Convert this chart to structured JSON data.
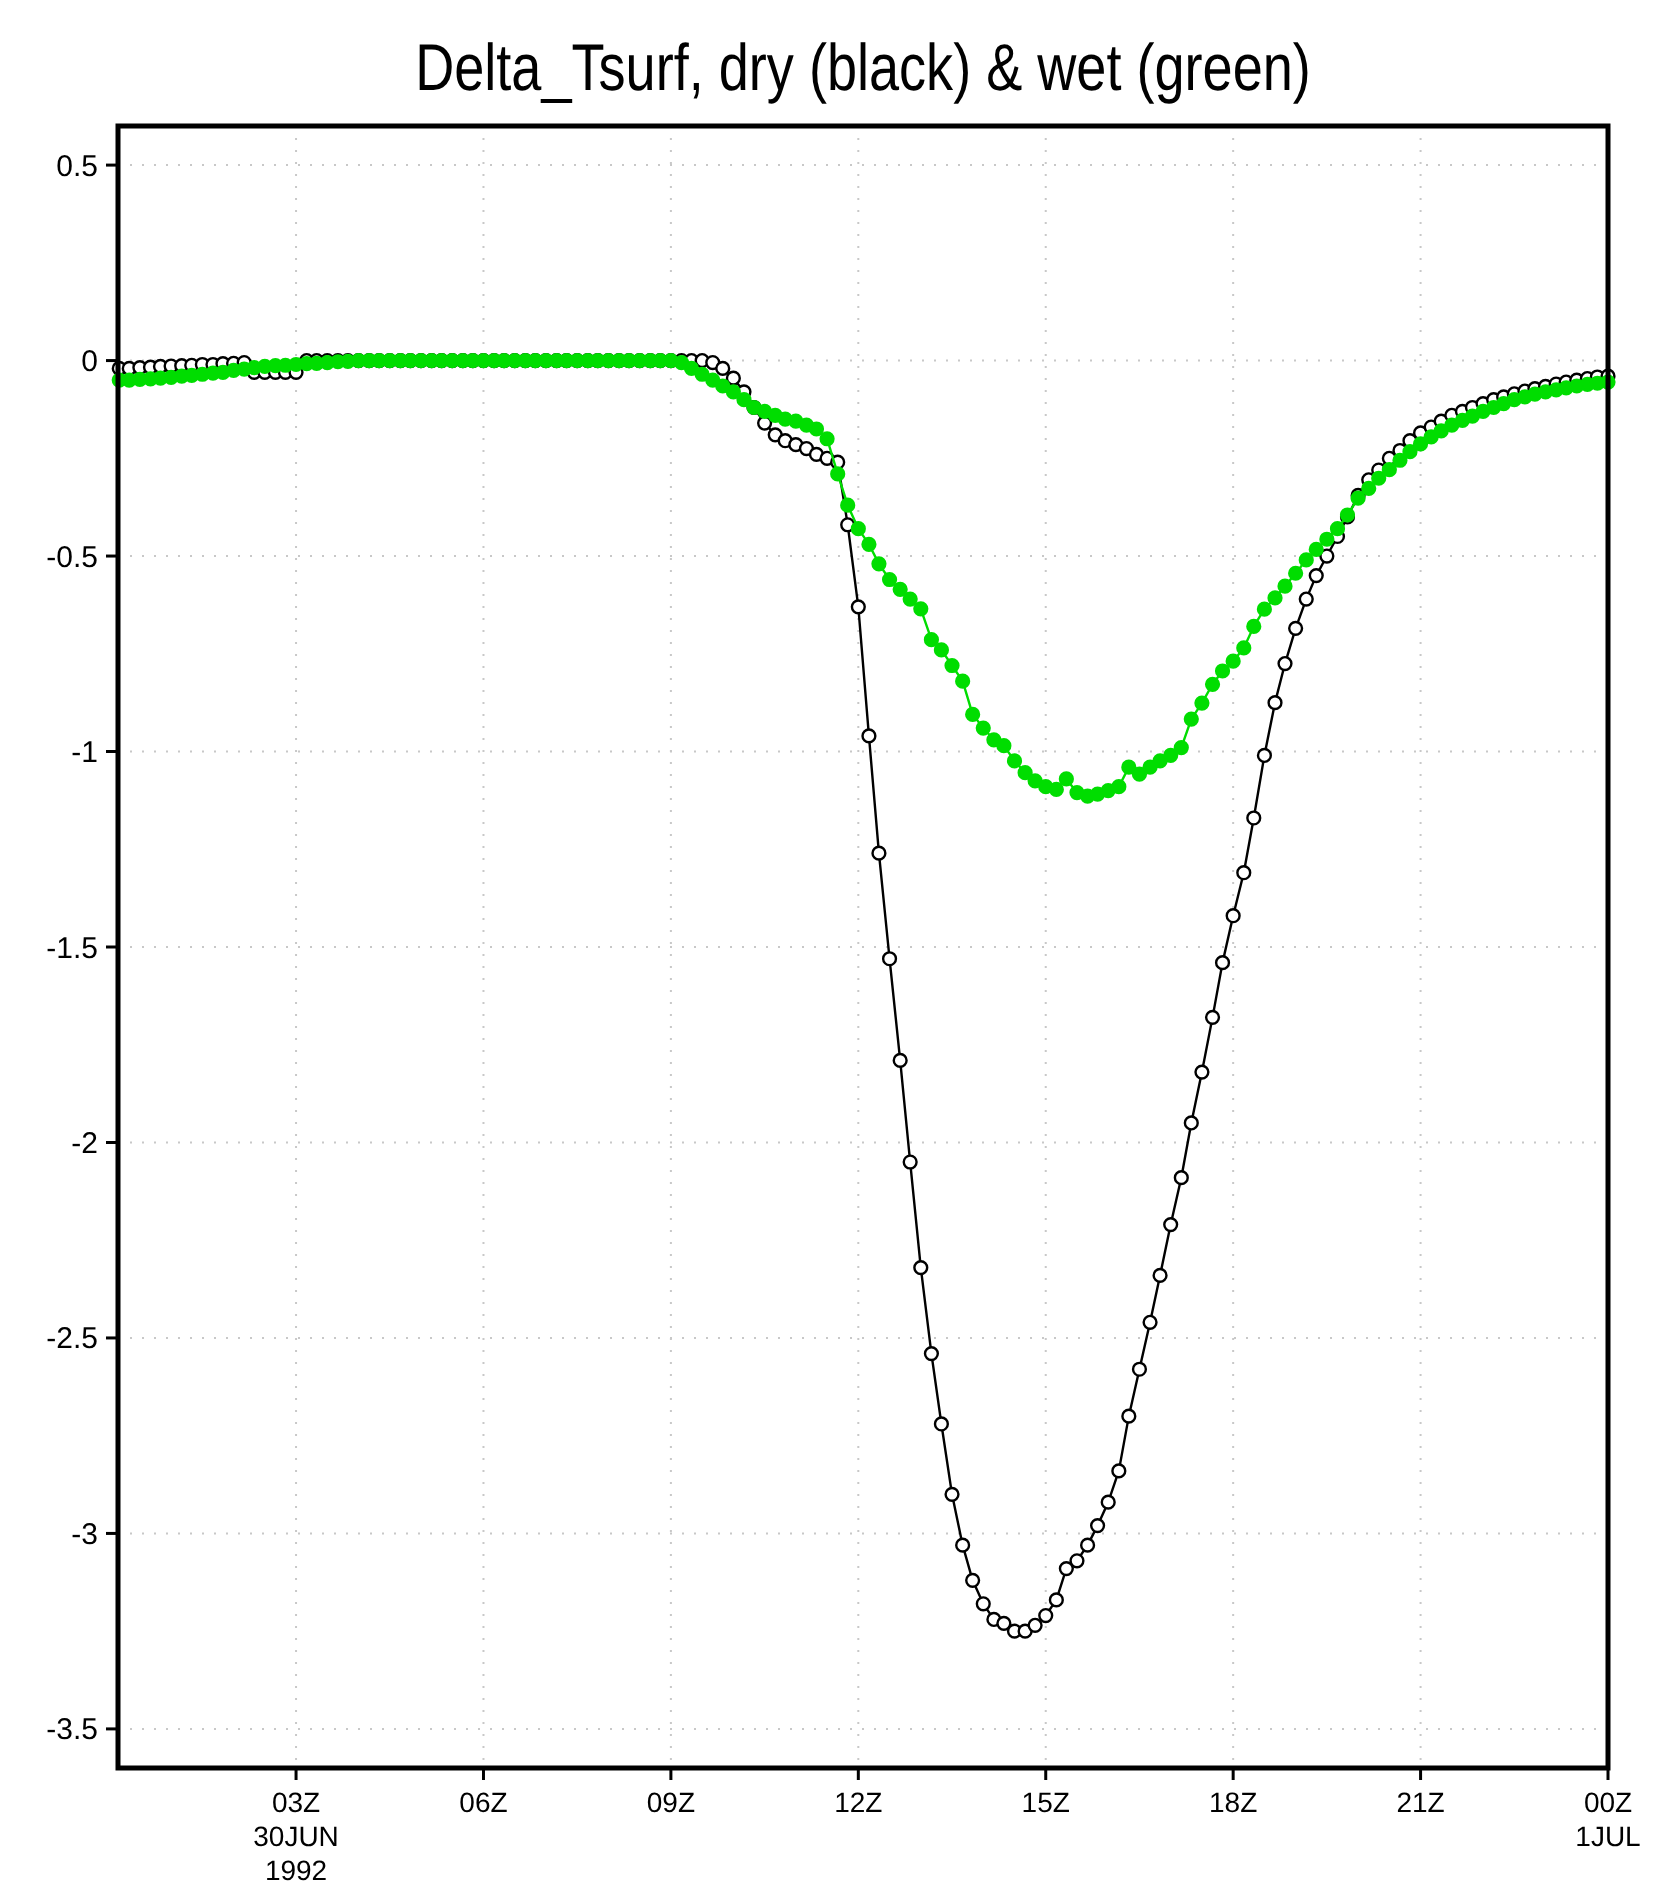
{
  "chart_data": {
    "type": "line",
    "title": "Delta_Tsurf, dry (black) & wet (green)",
    "x": [
      0.17,
      0.33,
      0.5,
      0.67,
      0.83,
      1,
      1.17,
      1.33,
      1.5,
      1.67,
      1.83,
      2,
      2.17,
      2.33,
      2.5,
      2.67,
      2.83,
      3,
      3.17,
      3.33,
      3.5,
      3.67,
      3.83,
      4,
      4.17,
      4.33,
      4.5,
      4.67,
      4.83,
      5,
      5.17,
      5.33,
      5.5,
      5.67,
      5.83,
      6,
      6.17,
      6.33,
      6.5,
      6.67,
      6.83,
      7,
      7.17,
      7.33,
      7.5,
      7.67,
      7.83,
      8,
      8.17,
      8.33,
      8.5,
      8.67,
      8.83,
      9,
      9.17,
      9.33,
      9.5,
      9.67,
      9.83,
      10,
      10.17,
      10.33,
      10.5,
      10.67,
      10.83,
      11,
      11.17,
      11.33,
      11.5,
      11.67,
      11.83,
      12,
      12.17,
      12.33,
      12.5,
      12.67,
      12.83,
      13,
      13.17,
      13.33,
      13.5,
      13.67,
      13.83,
      14,
      14.17,
      14.33,
      14.5,
      14.67,
      14.83,
      15,
      15.17,
      15.33,
      15.5,
      15.67,
      15.83,
      16,
      16.17,
      16.33,
      16.5,
      16.67,
      16.83,
      17,
      17.17,
      17.33,
      17.5,
      17.67,
      17.83,
      18,
      18.17,
      18.33,
      18.5,
      18.67,
      18.83,
      19,
      19.17,
      19.33,
      19.5,
      19.67,
      19.83,
      20,
      20.17,
      20.33,
      20.5,
      20.67,
      20.83,
      21,
      21.17,
      21.33,
      21.5,
      21.67,
      21.83,
      22,
      22.17,
      22.33,
      22.5,
      22.67,
      22.83,
      23,
      23.17,
      23.33,
      23.5,
      23.67,
      23.83,
      24
    ],
    "series": [
      {
        "color": "#000000",
        "values": [
          -0.02,
          -0.02,
          -0.018,
          -0.017,
          -0.015,
          -0.014,
          -0.013,
          -0.012,
          -0.01,
          -0.01,
          -0.008,
          -0.007,
          -0.005,
          -0.03,
          -0.03,
          -0.03,
          -0.03,
          -0.03,
          0,
          0,
          0,
          0,
          0,
          0,
          0,
          0,
          0,
          0,
          0,
          0,
          0,
          0,
          0,
          0,
          0,
          0,
          0,
          0,
          0,
          0,
          0,
          0,
          0,
          0,
          0,
          0,
          0,
          0,
          0,
          0,
          0,
          0,
          0,
          0,
          0,
          0,
          0,
          -0.005,
          -0.02,
          -0.045,
          -0.08,
          -0.12,
          -0.16,
          -0.19,
          -0.205,
          -0.215,
          -0.225,
          -0.24,
          -0.25,
          -0.26,
          -0.42,
          -0.63,
          -0.96,
          -1.26,
          -1.53,
          -1.79,
          -2.05,
          -2.32,
          -2.54,
          -2.72,
          -2.9,
          -3.03,
          -3.12,
          -3.18,
          -3.22,
          -3.23,
          -3.25,
          -3.25,
          -3.235,
          -3.21,
          -3.17,
          -3.09,
          -3.07,
          -3.03,
          -2.98,
          -2.92,
          -2.84,
          -2.7,
          -2.58,
          -2.46,
          -2.34,
          -2.21,
          -2.09,
          -1.95,
          -1.82,
          -1.68,
          -1.54,
          -1.42,
          -1.31,
          -1.17,
          -1.01,
          -0.875,
          -0.775,
          -0.685,
          -0.61,
          -0.55,
          -0.5,
          -0.45,
          -0.4,
          -0.345,
          -0.305,
          -0.28,
          -0.25,
          -0.23,
          -0.205,
          -0.185,
          -0.17,
          -0.155,
          -0.14,
          -0.13,
          -0.12,
          -0.11,
          -0.1,
          -0.093,
          -0.085,
          -0.078,
          -0.072,
          -0.066,
          -0.06,
          -0.055,
          -0.05,
          -0.046,
          -0.042,
          -0.04
        ]
      },
      {
        "color": "#00dd00",
        "values": [
          -0.05,
          -0.05,
          -0.048,
          -0.047,
          -0.045,
          -0.043,
          -0.04,
          -0.038,
          -0.035,
          -0.032,
          -0.03,
          -0.025,
          -0.022,
          -0.018,
          -0.015,
          -0.013,
          -0.012,
          -0.01,
          -0.008,
          -0.007,
          -0.005,
          -0.003,
          -0.002,
          0,
          0,
          0,
          0,
          0,
          0,
          0,
          0,
          0,
          0,
          0,
          0,
          0,
          0,
          0,
          0,
          0,
          0,
          0,
          0,
          0,
          0,
          0,
          0,
          0,
          0,
          0,
          0,
          0,
          0,
          0,
          -0.005,
          -0.02,
          -0.035,
          -0.05,
          -0.065,
          -0.08,
          -0.1,
          -0.12,
          -0.13,
          -0.14,
          -0.15,
          -0.155,
          -0.165,
          -0.175,
          -0.2,
          -0.29,
          -0.37,
          -0.43,
          -0.47,
          -0.52,
          -0.56,
          -0.585,
          -0.61,
          -0.635,
          -0.714,
          -0.74,
          -0.78,
          -0.82,
          -0.905,
          -0.94,
          -0.97,
          -0.985,
          -1.024,
          -1.054,
          -1.075,
          -1.09,
          -1.097,
          -1.07,
          -1.105,
          -1.114,
          -1.109,
          -1.1,
          -1.09,
          -1.04,
          -1.058,
          -1.04,
          -1.024,
          -1.01,
          -0.99,
          -0.917,
          -0.876,
          -0.828,
          -0.794,
          -0.769,
          -0.735,
          -0.68,
          -0.636,
          -0.607,
          -0.577,
          -0.544,
          -0.51,
          -0.483,
          -0.457,
          -0.43,
          -0.395,
          -0.352,
          -0.327,
          -0.301,
          -0.279,
          -0.255,
          -0.233,
          -0.213,
          -0.195,
          -0.18,
          -0.165,
          -0.153,
          -0.142,
          -0.13,
          -0.12,
          -0.11,
          -0.1,
          -0.093,
          -0.086,
          -0.08,
          -0.075,
          -0.07,
          -0.065,
          -0.061,
          -0.058,
          -0.055
        ]
      }
    ],
    "xlim": [
      0.15,
      24
    ],
    "xticks": [
      {
        "value": 3,
        "label": "03Z\n30JUN\n1992"
      },
      {
        "value": 6,
        "label": "06Z"
      },
      {
        "value": 9,
        "label": "09Z"
      },
      {
        "value": 12,
        "label": "12Z"
      },
      {
        "value": 15,
        "label": "15Z"
      },
      {
        "value": 18,
        "label": "18Z"
      },
      {
        "value": 21,
        "label": "21Z"
      },
      {
        "value": 24,
        "label": "00Z\n1JUL"
      }
    ],
    "ylim": [
      -3.6,
      0.6
    ],
    "yticks": [
      0.5,
      0,
      -0.5,
      -1,
      -1.5,
      -2,
      -2.5,
      -3,
      -3.5
    ],
    "grid": true,
    "marker": "circle",
    "line_style": "solid"
  }
}
